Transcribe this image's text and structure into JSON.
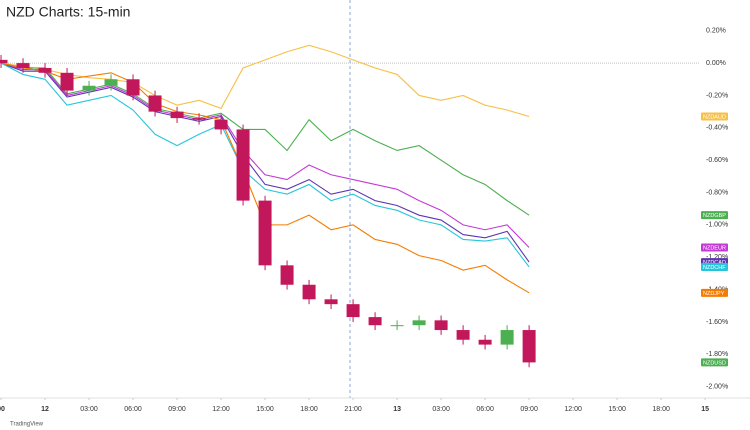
{
  "chart_data": {
    "type": "line",
    "title": "NZD Charts: 15-min",
    "footer": "TradingView",
    "x": [
      -3,
      -1.5,
      0,
      1.5,
      3,
      4.5,
      6,
      7.5,
      9,
      10.5,
      12,
      13.5,
      15,
      16.5,
      18,
      19.5,
      21,
      22.5,
      24,
      25.5,
      27,
      28.5,
      30,
      31.5,
      33
    ],
    "xlim": [
      -3.07,
      44.65
    ],
    "xticks": [
      {
        "value": -3,
        "label": "00"
      },
      {
        "value": 0,
        "label": "12"
      },
      {
        "value": 3,
        "label": "03:00"
      },
      {
        "value": 6,
        "label": "06:00"
      },
      {
        "value": 9,
        "label": "09:00"
      },
      {
        "value": 12,
        "label": "12:00"
      },
      {
        "value": 15,
        "label": "15:00"
      },
      {
        "value": 18,
        "label": "18:00"
      },
      {
        "value": 21,
        "label": "21:00"
      },
      {
        "value": 24,
        "label": "13"
      },
      {
        "value": 27,
        "label": "03:00"
      },
      {
        "value": 30,
        "label": "06:00"
      },
      {
        "value": 33,
        "label": "09:00"
      },
      {
        "value": 36,
        "label": "12:00"
      },
      {
        "value": 39,
        "label": "15:00"
      },
      {
        "value": 42,
        "label": "18:00"
      },
      {
        "value": 45,
        "label": "15"
      }
    ],
    "ylim": [
      -2.07,
      0.39
    ],
    "yticks": [
      {
        "value": 0.2,
        "label": "0.20%"
      },
      {
        "value": 0,
        "label": "0.00%"
      },
      {
        "value": -0.2,
        "label": "-0.20%"
      },
      {
        "value": -0.4,
        "label": "-0.40%"
      },
      {
        "value": -0.6,
        "label": "-0.60%"
      },
      {
        "value": -0.8,
        "label": "-0.80%"
      },
      {
        "value": -1.0,
        "label": "-1.00%"
      },
      {
        "value": -1.2,
        "label": "-1.20%"
      },
      {
        "value": -1.4,
        "label": "-1.40%"
      },
      {
        "value": -1.6,
        "label": "-1.60%"
      },
      {
        "value": -1.8,
        "label": "-1.80%"
      },
      {
        "value": -2.0,
        "label": "-2.00%"
      }
    ],
    "grid": false,
    "series": [
      {
        "name": "NZDAUD",
        "color": "#f7c046",
        "values": [
          0,
          -0.02,
          -0.04,
          -0.07,
          -0.09,
          -0.1,
          -0.12,
          -0.2,
          -0.26,
          -0.23,
          -0.28,
          -0.03,
          0.02,
          0.07,
          0.11,
          0.07,
          0.02,
          -0.03,
          -0.07,
          -0.2,
          -0.23,
          -0.2,
          -0.26,
          -0.29,
          -0.33
        ]
      },
      {
        "name": "NZDGBP",
        "color": "#4caf50",
        "values": [
          0,
          -0.03,
          -0.03,
          -0.19,
          -0.16,
          -0.13,
          -0.19,
          -0.28,
          -0.31,
          -0.34,
          -0.31,
          -0.41,
          -0.41,
          -0.54,
          -0.35,
          -0.48,
          -0.41,
          -0.48,
          -0.54,
          -0.51,
          -0.6,
          -0.69,
          -0.75,
          -0.85,
          -0.94
        ]
      },
      {
        "name": "NZDEUR",
        "color": "#c43ad6",
        "values": [
          0,
          -0.04,
          -0.04,
          -0.2,
          -0.17,
          -0.14,
          -0.2,
          -0.29,
          -0.32,
          -0.35,
          -0.32,
          -0.54,
          -0.69,
          -0.72,
          -0.63,
          -0.69,
          -0.72,
          -0.75,
          -0.78,
          -0.85,
          -0.91,
          -1.0,
          -1.03,
          -1.0,
          -1.14
        ]
      },
      {
        "name": "NZDCAD",
        "color": "#5e35b1",
        "values": [
          0,
          -0.05,
          -0.05,
          -0.21,
          -0.18,
          -0.15,
          -0.21,
          -0.3,
          -0.33,
          -0.36,
          -0.33,
          -0.57,
          -0.75,
          -0.78,
          -0.72,
          -0.81,
          -0.78,
          -0.85,
          -0.88,
          -0.94,
          -0.97,
          -1.06,
          -1.08,
          -1.04,
          -1.23
        ]
      },
      {
        "name": "NZDCHF",
        "color": "#26c6da",
        "values": [
          0,
          -0.07,
          -0.1,
          -0.26,
          -0.23,
          -0.2,
          -0.29,
          -0.44,
          -0.51,
          -0.44,
          -0.38,
          -0.66,
          -0.78,
          -0.81,
          -0.75,
          -0.85,
          -0.81,
          -0.88,
          -0.91,
          -0.97,
          -1.0,
          -1.09,
          -1.1,
          -1.08,
          -1.26
        ]
      },
      {
        "name": "NZDJPY",
        "color": "#f57c00",
        "values": [
          0,
          -0.03,
          -0.05,
          -0.1,
          -0.08,
          -0.06,
          -0.12,
          -0.25,
          -0.3,
          -0.32,
          -0.35,
          -0.66,
          -1.0,
          -1.0,
          -0.94,
          -1.03,
          -1.0,
          -1.09,
          -1.12,
          -1.19,
          -1.22,
          -1.28,
          -1.25,
          -1.34,
          -1.42
        ]
      },
      {
        "name": "NZDUSD",
        "type": "candlestick",
        "color": "#4caf50",
        "down_color": "#c2185b",
        "open": [
          0.02,
          0.0,
          -0.03,
          -0.06,
          -0.17,
          -0.14,
          -0.1,
          -0.2,
          -0.3,
          -0.34,
          -0.35,
          -0.41,
          -0.85,
          -1.25,
          -1.37,
          -1.46,
          -1.49,
          -1.57,
          -1.62,
          -1.62,
          -1.59,
          -1.65,
          -1.71,
          -1.74,
          -1.65
        ],
        "high": [
          0.05,
          0.03,
          0.0,
          -0.03,
          -0.11,
          -0.07,
          -0.07,
          -0.17,
          -0.27,
          -0.31,
          -0.32,
          -0.38,
          -0.82,
          -1.22,
          -1.34,
          -1.43,
          -1.46,
          -1.54,
          -1.59,
          -1.56,
          -1.56,
          -1.62,
          -1.68,
          -1.62,
          -1.62
        ],
        "low": [
          -0.03,
          -0.06,
          -0.09,
          -0.2,
          -0.2,
          -0.17,
          -0.23,
          -0.33,
          -0.37,
          -0.38,
          -0.44,
          -0.88,
          -1.28,
          -1.4,
          -1.49,
          -1.52,
          -1.6,
          -1.65,
          -1.65,
          -1.65,
          -1.68,
          -1.74,
          -1.77,
          -1.77,
          -1.88
        ],
        "close": [
          0.0,
          -0.03,
          -0.06,
          -0.17,
          -0.14,
          -0.1,
          -0.2,
          -0.3,
          -0.34,
          -0.35,
          -0.41,
          -0.85,
          -1.25,
          -1.37,
          -1.46,
          -1.49,
          -1.57,
          -1.62,
          -1.62,
          -1.59,
          -1.65,
          -1.71,
          -1.74,
          -1.65,
          -1.85
        ]
      }
    ]
  }
}
